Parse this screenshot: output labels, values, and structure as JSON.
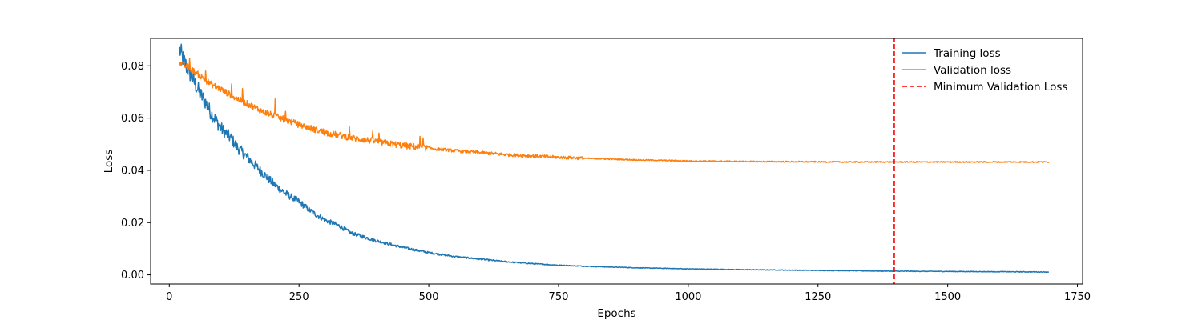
{
  "chart_data": {
    "type": "line",
    "xlabel": "Epochs",
    "ylabel": "Loss",
    "xlim": [
      -36,
      1760
    ],
    "ylim": [
      -0.0035,
      0.0905
    ],
    "x_ticks": [
      0,
      250,
      500,
      750,
      1000,
      1250,
      1500,
      1750
    ],
    "x_tick_labels": [
      "0",
      "250",
      "500",
      "750",
      "1000",
      "1250",
      "1500",
      "1750"
    ],
    "y_ticks": [
      0.0,
      0.02,
      0.04,
      0.06,
      0.08
    ],
    "y_tick_labels": [
      "0.00",
      "0.02",
      "0.04",
      "0.06",
      "0.08"
    ],
    "grid": false,
    "legend_position": "top-right",
    "x_range": [
      20,
      1695
    ],
    "series": [
      {
        "name": "Training loss",
        "color": "#1f77b4",
        "style": "solid",
        "x": [
          20,
          30,
          40,
          50,
          60,
          70,
          80,
          90,
          100,
          110,
          120,
          130,
          140,
          150,
          160,
          170,
          180,
          190,
          200,
          225,
          250,
          275,
          300,
          325,
          350,
          375,
          400,
          450,
          500,
          550,
          600,
          650,
          700,
          750,
          800,
          900,
          1000,
          1100,
          1200,
          1300,
          1400,
          1500,
          1600,
          1695
        ],
        "y": [
          0.086,
          0.081,
          0.077,
          0.073,
          0.069,
          0.066,
          0.062,
          0.059,
          0.056,
          0.054,
          0.052,
          0.049,
          0.047,
          0.045,
          0.043,
          0.041,
          0.039,
          0.037,
          0.035,
          0.031,
          0.028,
          0.024,
          0.021,
          0.019,
          0.016,
          0.0145,
          0.013,
          0.0105,
          0.0085,
          0.007,
          0.006,
          0.005,
          0.0043,
          0.0037,
          0.0033,
          0.0027,
          0.0023,
          0.002,
          0.0018,
          0.0016,
          0.0014,
          0.0013,
          0.0012,
          0.0011
        ]
      },
      {
        "name": "Validation loss",
        "color": "#ff7f0e",
        "style": "solid",
        "x": [
          20,
          40,
          60,
          80,
          100,
          125,
          150,
          175,
          200,
          250,
          300,
          350,
          400,
          450,
          500,
          550,
          600,
          650,
          700,
          750,
          800,
          900,
          1000,
          1100,
          1200,
          1300,
          1400,
          1500,
          1600,
          1695
        ],
        "y": [
          0.081,
          0.079,
          0.076,
          0.073,
          0.071,
          0.068,
          0.0655,
          0.063,
          0.061,
          0.0575,
          0.0545,
          0.0525,
          0.051,
          0.0495,
          0.0485,
          0.0475,
          0.0468,
          0.046,
          0.0455,
          0.045,
          0.0446,
          0.044,
          0.0436,
          0.0434,
          0.0433,
          0.0432,
          0.0432,
          0.0432,
          0.0432,
          0.0432
        ]
      },
      {
        "name": "Minimum Validation Loss",
        "color": "#ff0000",
        "style": "dashed",
        "x_value": 1397
      }
    ]
  }
}
